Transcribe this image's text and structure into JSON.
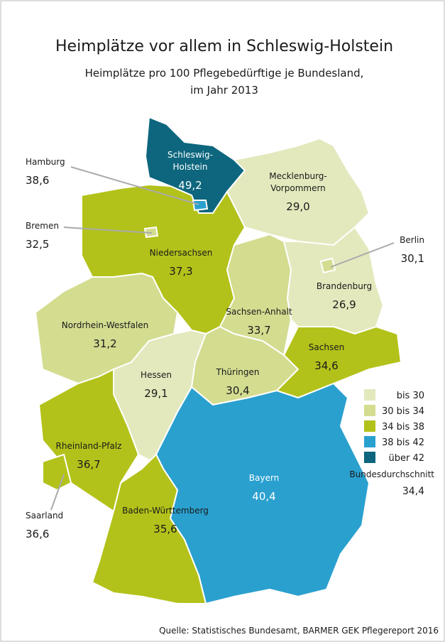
{
  "title": "Heimplätze vor allem in Schleswig-Holstein",
  "subtitle": [
    "Heimplätze pro 100 Pflegebedürftige je Bundesland,",
    "im Jahr 2013"
  ],
  "regions": [
    {
      "name": [
        "Schleswig-",
        "Holstein"
      ],
      "value": "49,2",
      "color": "#0d667d"
    },
    {
      "name": [
        "Mecklenburg-",
        "Vorpommern"
      ],
      "value": "29,0",
      "color": "#e3e9bd"
    },
    {
      "name": [
        "Niedersachsen"
      ],
      "value": "37,3",
      "color": "#b3c21a"
    },
    {
      "name": [
        "Nordrhein-Westfalen"
      ],
      "value": "31,2",
      "color": "#d4dc90"
    },
    {
      "name": [
        "Hessen"
      ],
      "value": "29,1",
      "color": "#e3e9bd"
    },
    {
      "name": [
        "Thüringen"
      ],
      "value": "30,4",
      "color": "#d4dc90"
    },
    {
      "name": [
        "Sachsen-Anhalt"
      ],
      "value": "33,7",
      "color": "#d4dc90"
    },
    {
      "name": [
        "Brandenburg"
      ],
      "value": "26,9",
      "color": "#e3e9bd"
    },
    {
      "name": [
        "Sachsen"
      ],
      "value": "34,6",
      "color": "#b3c21a"
    },
    {
      "name": [
        "Bayern"
      ],
      "value": "40,4",
      "color": "#2aa0cf"
    },
    {
      "name": [
        "Baden-Württemberg"
      ],
      "value": "35,6",
      "color": "#b3c21a"
    },
    {
      "name": [
        "Rheinland-Pfalz"
      ],
      "value": "36,7",
      "color": "#b3c21a"
    },
    {
      "name": [
        "Saarland"
      ],
      "value": "36,6",
      "color": "#b3c21a"
    },
    {
      "name": [
        "Berlin"
      ],
      "value": "30,1",
      "color": "#d4dc90"
    },
    {
      "name": [
        "Bremen"
      ],
      "value": "32,5",
      "color": "#d4dc90"
    },
    {
      "name": [
        "Hamburg"
      ],
      "value": "38,6",
      "color": "#2aa0cf"
    }
  ],
  "legend": [
    {
      "label": "bis 30",
      "color": "#e3e9bd"
    },
    {
      "label": "30 bis 34",
      "color": "#d4dc90"
    },
    {
      "label": "34 bis 38",
      "color": "#b3c21a"
    },
    {
      "label": "38 bis 42",
      "color": "#2aa0cf"
    },
    {
      "label": "über 42",
      "color": "#0d667d"
    }
  ],
  "average": {
    "label": "Bundesdurchschnitt",
    "value": "34,4"
  },
  "source": "Quelle: Statistisches Bundesamt, BARMER GEK Pflegereport 2016"
}
